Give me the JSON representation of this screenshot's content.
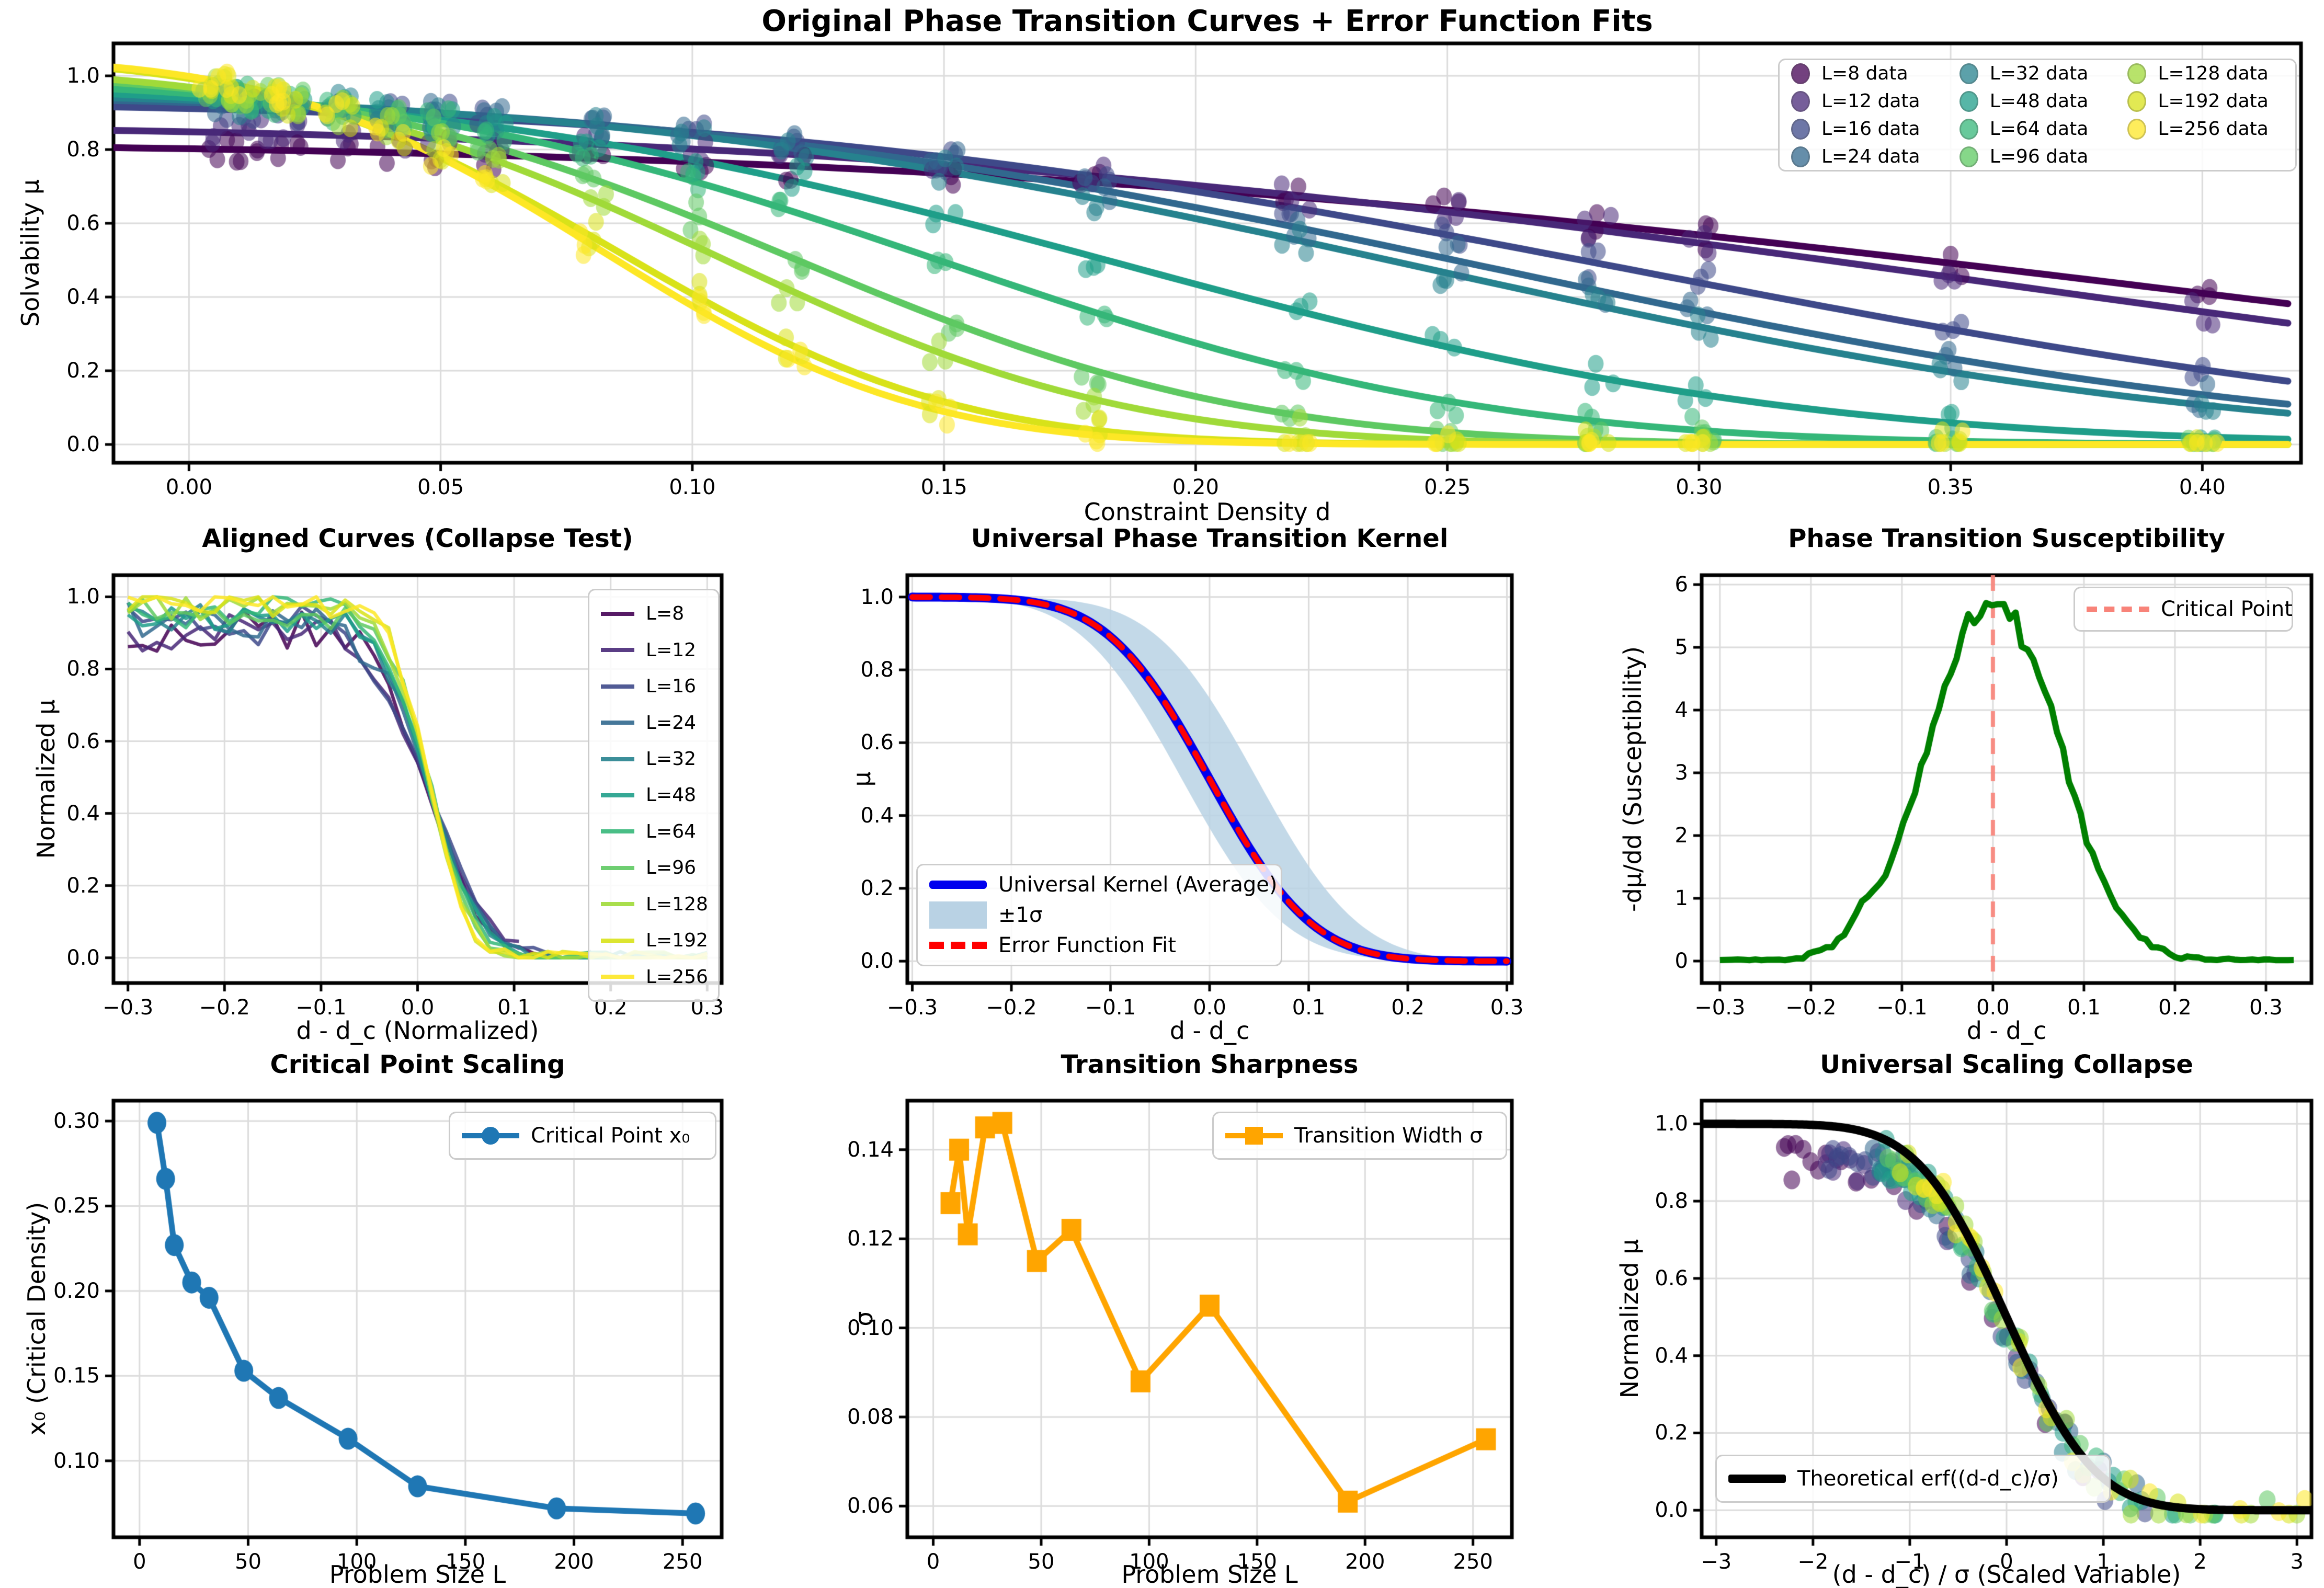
{
  "suptitle": "Original Phase Transition Curves + Error Function Fits",
  "L_values": [
    8,
    12,
    16,
    24,
    32,
    48,
    64,
    96,
    128,
    192,
    256
  ],
  "palette": [
    "#440154",
    "#482878",
    "#3e4989",
    "#31688e",
    "#26828e",
    "#1f9e89",
    "#35b779",
    "#5ec962",
    "#a0da39",
    "#d8e219",
    "#fde725"
  ],
  "colors": {
    "grid": "#dcdcdc",
    "spine": "#000000",
    "kernel_line": "#0000ee",
    "kernel_band": "#b9d2e4",
    "errfit_line": "#ff0000",
    "susceptibility_line": "#008000",
    "critical_dash": "#f88379",
    "scaling_blue": "#1f77b4",
    "sharpness_orange": "#ffa500",
    "theory_black": "#000000"
  },
  "chart_data": [
    {
      "id": "main",
      "type": "scatter+line",
      "title": "Original Phase Transition Curves + Error Function Fits",
      "xlabel": "Constraint Density d",
      "ylabel": "Solvability μ",
      "xlim": [
        -0.015,
        0.4196
      ],
      "ylim": [
        -0.0496,
        1.088
      ],
      "xtick_vals": [
        0.0,
        0.05,
        0.1,
        0.15,
        0.2,
        0.25,
        0.3,
        0.35,
        0.4
      ],
      "xtick_labels": [
        "0.00",
        "0.05",
        "0.10",
        "0.15",
        "0.20",
        "0.25",
        "0.30",
        "0.35",
        "0.40"
      ],
      "ytick_vals": [
        0.0,
        0.2,
        0.4,
        0.6,
        0.8,
        1.0
      ],
      "ytick_labels": [
        "0.0",
        "0.2",
        "0.4",
        "0.6",
        "0.8",
        "1.0"
      ],
      "legend_labels": [
        "L=8 data",
        "L=12 data",
        "L=16 data",
        "L=24 data",
        "L=32 data",
        "L=48 data",
        "L=64 data",
        "L=96 data",
        "L=128 data",
        "L=192 data",
        "L=256 data"
      ],
      "erf_fits": {
        "A": [
          0.82,
          0.87,
          0.93,
          0.95,
          0.96,
          0.98,
          0.99,
          1.01,
          1.02,
          1.05,
          1.05
        ],
        "x0": [
          0.4,
          0.36,
          0.29,
          0.26,
          0.245,
          0.185,
          0.15,
          0.12,
          0.105,
          0.085,
          0.082
        ],
        "w": [
          0.28,
          0.26,
          0.2,
          0.185,
          0.18,
          0.15,
          0.12,
          0.1,
          0.09,
          0.075,
          0.07
        ]
      },
      "scatter_d": [
        0.005,
        0.01,
        0.015,
        0.02,
        0.03,
        0.04,
        0.05,
        0.06,
        0.08,
        0.1,
        0.12,
        0.15,
        0.18,
        0.22,
        0.25,
        0.28,
        0.3,
        0.35,
        0.4
      ],
      "trials_per_point": 3
    },
    {
      "id": "aligned",
      "type": "line",
      "title": "Aligned Curves (Collapse Test)",
      "xlabel": "d - d_c (Normalized)",
      "ylabel": "Normalized μ",
      "xlim": [
        -0.315,
        0.315
      ],
      "ylim": [
        -0.07,
        1.06
      ],
      "xtick_vals": [
        -0.3,
        -0.2,
        -0.1,
        0.0,
        0.1,
        0.2,
        0.3
      ],
      "xtick_labels": [
        "−0.3",
        "−0.2",
        "−0.1",
        "0.0",
        "0.1",
        "0.2",
        "0.3"
      ],
      "ytick_vals": [
        0.0,
        0.2,
        0.4,
        0.6,
        0.8,
        1.0
      ],
      "ytick_labels": [
        "0.0",
        "0.2",
        "0.4",
        "0.6",
        "0.8",
        "1.0"
      ],
      "legend_labels": [
        "L=8",
        "L=12",
        "L=16",
        "L=24",
        "L=32",
        "L=48",
        "L=64",
        "L=96",
        "L=128",
        "L=192",
        "L=256"
      ],
      "series": {
        "x_start": -0.3,
        "x_end": [
          0.135,
          0.11,
          0.16,
          0.18,
          0.2,
          0.25,
          0.3,
          0.3,
          0.3,
          0.3,
          0.3
        ],
        "width": [
          0.065,
          0.07,
          0.07,
          0.065,
          0.06,
          0.06,
          0.055,
          0.05,
          0.05,
          0.045,
          0.045
        ],
        "plateau": [
          0.9,
          0.91,
          0.92,
          0.93,
          0.94,
          0.95,
          0.96,
          0.96,
          0.97,
          0.97,
          0.98
        ],
        "noise": [
          0.05,
          0.05,
          0.045,
          0.04,
          0.04,
          0.035,
          0.03,
          0.03,
          0.025,
          0.02,
          0.02
        ]
      }
    },
    {
      "id": "kernel",
      "type": "line+band",
      "title": "Universal Phase Transition Kernel",
      "xlabel": "d - d_c",
      "ylabel": "μ",
      "xlim": [
        -0.305,
        0.305
      ],
      "ylim": [
        -0.06,
        1.06
      ],
      "xtick_vals": [
        -0.3,
        -0.2,
        -0.1,
        0.0,
        0.1,
        0.2,
        0.3
      ],
      "xtick_labels": [
        "−0.3",
        "−0.2",
        "−0.1",
        "0.0",
        "0.1",
        "0.2",
        "0.3"
      ],
      "ytick_vals": [
        0.0,
        0.2,
        0.4,
        0.6,
        0.8,
        1.0
      ],
      "ytick_labels": [
        "0.0",
        "0.2",
        "0.4",
        "0.6",
        "0.8",
        "1.0"
      ],
      "legend_labels": [
        "Universal Kernel (Average)",
        "±1σ",
        "Error Function Fit"
      ],
      "kernel_width": 0.115,
      "band_shift": [
        -0.048,
        0.028
      ],
      "x_range": [
        -0.3,
        0.3
      ]
    },
    {
      "id": "susceptibility",
      "type": "line",
      "title": "Phase Transition Susceptibility",
      "xlabel": "d - d_c",
      "ylabel": "-dμ/dd (Susceptibility)",
      "xlim": [
        -0.32,
        0.35
      ],
      "ylim": [
        -0.35,
        6.15
      ],
      "xtick_vals": [
        -0.3,
        -0.2,
        -0.1,
        0.0,
        0.1,
        0.2,
        0.3
      ],
      "xtick_labels": [
        "−0.3",
        "−0.2",
        "−0.1",
        "0.0",
        "0.1",
        "0.2",
        "0.3"
      ],
      "ytick_vals": [
        0,
        1,
        2,
        3,
        4,
        5,
        6
      ],
      "ytick_labels": [
        "0",
        "1",
        "2",
        "3",
        "4",
        "5",
        "6"
      ],
      "legend_labels": [
        "Critical Point"
      ],
      "peak": 5.78,
      "sigma": 0.07,
      "baseline": 0.02,
      "critical_x": 0.0,
      "x_range": [
        -0.3,
        0.335
      ]
    },
    {
      "id": "critical-point-scaling",
      "type": "line+marker",
      "title": "Critical Point Scaling",
      "xlabel": "Problem Size L",
      "ylabel": "x₀ (Critical Density)",
      "xlim": [
        -12,
        268
      ],
      "ylim": [
        0.055,
        0.312
      ],
      "xtick_vals": [
        0,
        50,
        100,
        150,
        200,
        250
      ],
      "xtick_labels": [
        "0",
        "50",
        "100",
        "150",
        "200",
        "250"
      ],
      "ytick_vals": [
        0.1,
        0.15,
        0.2,
        0.25,
        0.3
      ],
      "ytick_labels": [
        "0.10",
        "0.15",
        "0.20",
        "0.25",
        "0.30"
      ],
      "legend_labels": [
        "Critical Point x₀"
      ],
      "x": [
        8,
        12,
        16,
        24,
        32,
        48,
        64,
        96,
        128,
        192,
        256
      ],
      "y": [
        0.299,
        0.266,
        0.227,
        0.205,
        0.196,
        0.153,
        0.137,
        0.113,
        0.085,
        0.072,
        0.069
      ]
    },
    {
      "id": "transition-sharpness",
      "type": "line+marker",
      "title": "Transition Sharpness",
      "xlabel": "Problem Size L",
      "ylabel": "σ",
      "xlim": [
        -12,
        268
      ],
      "ylim": [
        0.053,
        0.151
      ],
      "xtick_vals": [
        0,
        50,
        100,
        150,
        200,
        250
      ],
      "xtick_labels": [
        "0",
        "50",
        "100",
        "150",
        "200",
        "250"
      ],
      "ytick_vals": [
        0.06,
        0.08,
        0.1,
        0.12,
        0.14
      ],
      "ytick_labels": [
        "0.06",
        "0.08",
        "0.10",
        "0.12",
        "0.14"
      ],
      "legend_labels": [
        "Transition Width σ"
      ],
      "x": [
        8,
        12,
        16,
        24,
        32,
        48,
        64,
        96,
        128,
        192,
        256
      ],
      "y": [
        0.128,
        0.14,
        0.121,
        0.145,
        0.146,
        0.115,
        0.122,
        0.088,
        0.105,
        0.061,
        0.075
      ]
    },
    {
      "id": "collapse",
      "type": "scatter+line",
      "title": "Universal Scaling Collapse",
      "xlabel": "(d - d_c) / σ (Scaled Variable)",
      "ylabel": "Normalized μ",
      "xlim": [
        -3.15,
        3.15
      ],
      "ylim": [
        -0.07,
        1.06
      ],
      "xtick_vals": [
        -3,
        -2,
        -1,
        0,
        1,
        2,
        3
      ],
      "xtick_labels": [
        "−3",
        "−2",
        "−1",
        "0",
        "1",
        "2",
        "3"
      ],
      "ytick_vals": [
        0.0,
        0.2,
        0.4,
        0.6,
        0.8,
        1.0
      ],
      "ytick_labels": [
        "0.0",
        "0.2",
        "0.4",
        "0.6",
        "0.8",
        "1.0"
      ],
      "legend_labels": [
        "Theoretical erf((d-d_c)/σ)"
      ],
      "erf_width": 1.02
    }
  ]
}
